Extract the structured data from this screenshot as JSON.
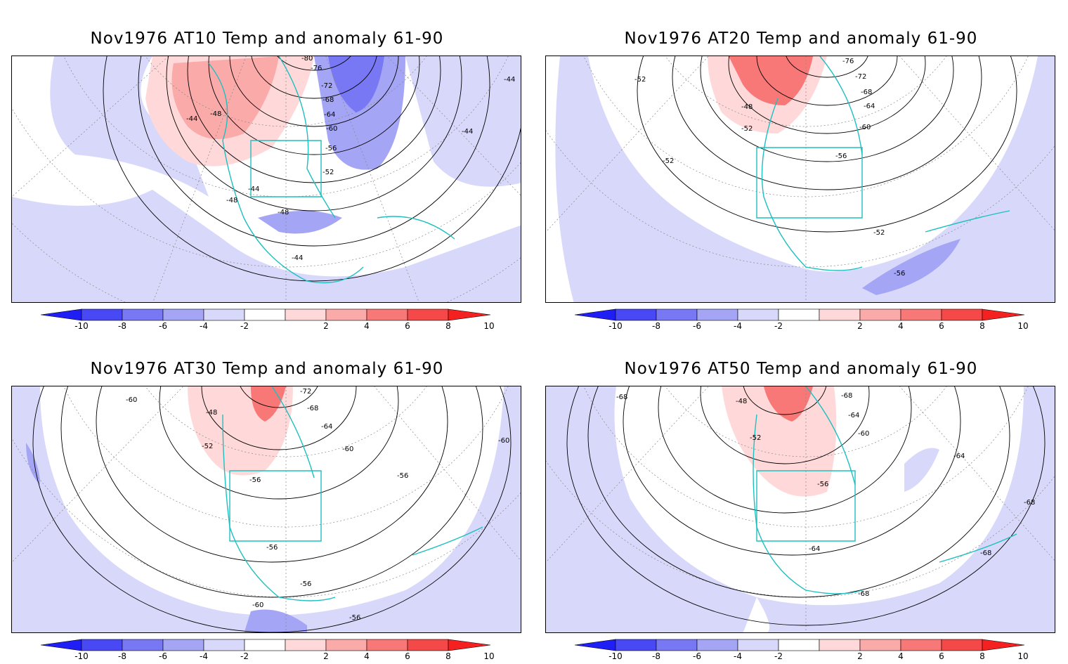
{
  "panels": [
    {
      "title": "Nov1976 AT10 Temp and anomaly 61-90",
      "contour_labels": [
        "-80",
        "-76",
        "-72",
        "-68",
        "-64",
        "-60",
        "-56",
        "-52",
        "-48",
        "-44",
        "-44",
        "-44",
        "-48",
        "-44",
        "-44",
        "-48"
      ]
    },
    {
      "title": "Nov1976 AT20 Temp and anomaly 61-90",
      "contour_labels": [
        "-76",
        "-72",
        "-68",
        "-64",
        "-60",
        "-56",
        "-52",
        "-52",
        "-52",
        "-48",
        "-52",
        "-56"
      ]
    },
    {
      "title": "Nov1976 AT30 Temp and anomaly 61-90",
      "contour_labels": [
        "-72",
        "-68",
        "-64",
        "-60",
        "-60",
        "-60",
        "-56",
        "-56",
        "-56",
        "-56",
        "-52",
        "-48",
        "-60",
        "-56"
      ]
    },
    {
      "title": "Nov1976 AT50 Temp and anomaly 61-90",
      "contour_labels": [
        "-68",
        "-68",
        "-64",
        "-60",
        "-56",
        "-52",
        "-48",
        "-64",
        "-68",
        "-64",
        "-68",
        "-68"
      ]
    }
  ],
  "colorbar": {
    "tick_labels": [
      "-10",
      "-8",
      "-6",
      "-4",
      "-2",
      "2",
      "4",
      "6",
      "8",
      "10"
    ],
    "colors": [
      "#1f1ff5",
      "#4848f5",
      "#7878f5",
      "#a5a5f5",
      "#d8d8fb",
      "#ffffff",
      "#ffd9d9",
      "#fbaaaa",
      "#f87878",
      "#f54848",
      "#f52020"
    ]
  },
  "colors": {
    "coast": "#1fbfbf",
    "contour": "#000000",
    "grid": "#888888"
  }
}
